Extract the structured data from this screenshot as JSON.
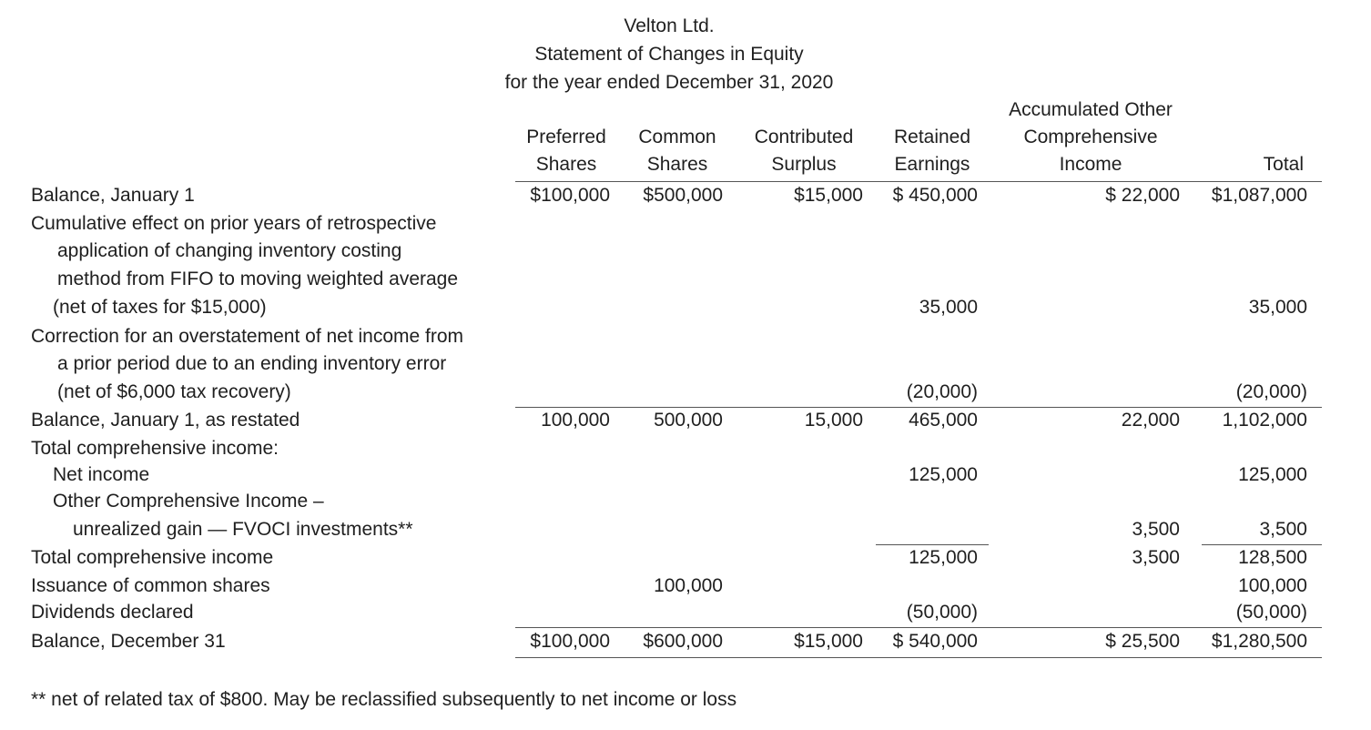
{
  "statement": {
    "company": "Velton Ltd.",
    "title": "Statement of Changes in Equity",
    "period": "for the year ended December 31, 2020"
  },
  "columns": {
    "preferred": [
      "Preferred",
      "Shares"
    ],
    "common": [
      "Common",
      "Shares"
    ],
    "contributed": [
      "Contributed",
      "Surplus"
    ],
    "retained": [
      "Retained",
      "Earnings"
    ],
    "aoci": [
      "Accumulated Other",
      "Comprehensive",
      "Income"
    ],
    "total": [
      "Total"
    ]
  },
  "rows": {
    "balance_jan1": {
      "label": "Balance, January 1",
      "preferred": "$100,000",
      "common": "$500,000",
      "contributed": "$15,000",
      "retained": "$ 450,000",
      "aoci": "$ 22,000",
      "total": "$1,087,000"
    },
    "cumulative_effect": {
      "label_lines": [
        "Cumulative effect on prior years of retrospective",
        "application of changing inventory costing",
        "method from FIFO to moving weighted average",
        "(net of taxes for $15,000)"
      ],
      "retained": "35,000",
      "total": "35,000"
    },
    "correction": {
      "label_lines": [
        "Correction for an overstatement of net income from",
        "a prior period due to an ending inventory error",
        "(net of $6,000 tax recovery)"
      ],
      "retained": "(20,000)",
      "total": "(20,000)"
    },
    "balance_restated": {
      "label": "Balance, January 1, as restated",
      "preferred": "100,000",
      "common": "500,000",
      "contributed": "15,000",
      "retained": "465,000",
      "aoci": "22,000",
      "total": "1,102,000"
    },
    "tci_heading": {
      "label": "Total comprehensive income:"
    },
    "net_income": {
      "label": "Net income",
      "retained": "125,000",
      "total": "125,000"
    },
    "oci": {
      "label_lines": [
        "Other Comprehensive Income –",
        "unrealized gain — FVOCI investments**"
      ],
      "aoci": "3,500",
      "total": "3,500"
    },
    "tci_total": {
      "label": "Total comprehensive income",
      "retained": "125,000",
      "aoci": "3,500",
      "total": "128,500"
    },
    "issuance": {
      "label": "Issuance of common shares",
      "common": "100,000",
      "total": "100,000"
    },
    "dividends": {
      "label": "Dividends declared",
      "retained": "(50,000)",
      "total": "(50,000)"
    },
    "balance_dec31": {
      "label": "Balance, December 31",
      "preferred": "$100,000",
      "common": "$600,000",
      "contributed": "$15,000",
      "retained": "$ 540,000",
      "aoci": "$ 25,500",
      "total": "$1,280,500"
    }
  },
  "footnote": "** net of related tax of $800. May be reclassified subsequently to net income or loss"
}
